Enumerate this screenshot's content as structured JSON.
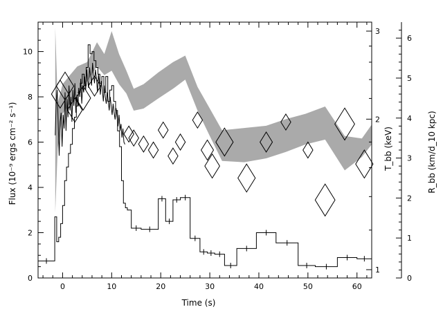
{
  "chart_data": {
    "type": "line",
    "x_axis": {
      "label": "Time (s)",
      "range": [
        -5,
        63
      ],
      "ticks": [
        0,
        10,
        20,
        30,
        40,
        50,
        60
      ],
      "tick_labels": [
        "0",
        "10",
        "20",
        "30",
        "40",
        "50",
        "60"
      ]
    },
    "left_axis": {
      "label": "Flux (10⁻⁹ ergs cm⁻² s⁻¹)",
      "range": [
        0,
        11.3
      ],
      "ticks": [
        0,
        2,
        4,
        6,
        8,
        10
      ],
      "tick_labels": [
        "0",
        "2",
        "4",
        "6",
        "8",
        "10"
      ]
    },
    "temperature_axis": {
      "label": "T_bb (keV)",
      "scale": "log",
      "ticks": [
        1,
        2,
        3
      ],
      "tick_labels": [
        "1",
        "2",
        "3"
      ]
    },
    "radius_axis": {
      "label": "R_bb (km/d_10 kpc)",
      "range": [
        0,
        6.4
      ],
      "ticks": [
        0,
        1,
        2,
        3,
        4,
        5,
        6
      ],
      "tick_labels": [
        "0",
        "1",
        "2",
        "3",
        "4",
        "5",
        "6"
      ]
    },
    "series": [
      {
        "role": "flux_lightcurve",
        "style": "histogram",
        "x": [
          -5,
          -1.6,
          -1.2,
          -0.8,
          -0.4,
          0,
          0.4,
          0.8,
          1.2,
          1.6,
          2,
          2.4,
          2.8,
          3.2,
          3.6,
          4,
          4.4,
          4.8,
          5.2,
          5.6,
          6,
          6.4,
          6.8,
          7.2,
          7.6,
          8,
          8.4,
          8.8,
          9.2,
          9.6,
          10,
          10.4,
          10.8,
          11.2,
          11.6,
          12,
          12.4,
          12.8,
          13.2,
          14,
          16,
          19.5,
          21,
          22.5,
          24,
          26,
          28,
          29.5,
          31,
          33,
          35.5,
          39.5,
          43.5,
          48,
          51.5,
          56,
          60,
          63
        ],
        "y": [
          0.75,
          2.7,
          1.6,
          1.8,
          2.4,
          3.2,
          4.3,
          4.9,
          5.5,
          5.9,
          6.6,
          7.1,
          7.6,
          8.2,
          8.6,
          9.0,
          8.5,
          9.3,
          10.3,
          9.9,
          10.0,
          9.6,
          9.3,
          9.0,
          8.6,
          8.9,
          8.2,
          8.9,
          7.8,
          8.3,
          8.5,
          7.8,
          7.4,
          6.5,
          5.8,
          4.3,
          3.3,
          3.1,
          3.0,
          2.2,
          2.15,
          3.5,
          2.5,
          3.45,
          3.55,
          1.75,
          1.15,
          1.1,
          1.05,
          0.55,
          1.3,
          2.0,
          1.55,
          0.55,
          0.5,
          0.9,
          0.85,
          0.85
        ]
      },
      {
        "role": "flux_lightcurve_secondary",
        "style": "line",
        "x": [
          -1.5,
          -1.3,
          -1.1,
          -0.9,
          -0.7,
          -0.5,
          -0.3,
          -0.1,
          0.1,
          0.3,
          0.5,
          0.7,
          0.9,
          1.1,
          1.3,
          1.5,
          1.7,
          1.9,
          2.1,
          2.3,
          2.5,
          2.7,
          2.9,
          3.1,
          3.3,
          3.5,
          3.7,
          3.9,
          4.1,
          4.3,
          4.5,
          4.7,
          4.9,
          5.1,
          5.3,
          5.5,
          5.7,
          5.9,
          6.1,
          6.3,
          6.5,
          6.7,
          6.9,
          7.1,
          7.3,
          7.5,
          7.7,
          7.9,
          8.1,
          8.3,
          8.5,
          8.7,
          8.9,
          9.1,
          9.3,
          9.5,
          9.7,
          9.9,
          10.1,
          10.3,
          10.5,
          10.7,
          10.9,
          11.1,
          11.3,
          11.5,
          11.7,
          11.9,
          12.1,
          12.3,
          12.5,
          12.7
        ],
        "y": [
          6.3,
          7.8,
          8.3,
          6.8,
          5.4,
          6.9,
          7.3,
          5.8,
          7.2,
          6.6,
          8.2,
          6.5,
          7.9,
          7.1,
          8.5,
          7.4,
          8.0,
          6.9,
          8.3,
          7.6,
          8.6,
          7.3,
          8.1,
          7.6,
          8.4,
          8.0,
          8.8,
          7.7,
          8.5,
          8.2,
          8.9,
          8.3,
          9.2,
          8.7,
          8.4,
          9.3,
          8.9,
          8.5,
          9.5,
          9.0,
          8.6,
          9.2,
          8.8,
          8.2,
          9.0,
          8.6,
          8.1,
          8.7,
          8.3,
          7.8,
          8.5,
          8.0,
          7.7,
          8.2,
          7.8,
          7.4,
          8.0,
          7.6,
          7.2,
          7.7,
          7.3,
          7.0,
          7.5,
          7.1,
          6.7,
          7.2,
          6.5,
          6.8,
          6.2,
          6.6,
          6.0,
          5.9
        ]
      },
      {
        "role": "temperature_band",
        "style": "band",
        "x": [
          -1.5,
          -1.0,
          0.0,
          1.5,
          3.0,
          5.0,
          7.0,
          8.5,
          10.0,
          11.5,
          13.0,
          14.5,
          16.5,
          19.5,
          22.5,
          25.0,
          27.5,
          30.0,
          32.5,
          37.0,
          41.5,
          45.5,
          49.5,
          53.5,
          57.5,
          61.0,
          63.0
        ],
        "y_upper": [
          3.05,
          2.15,
          2.35,
          2.45,
          2.55,
          2.6,
          2.85,
          2.7,
          3.0,
          2.7,
          2.5,
          2.3,
          2.35,
          2.48,
          2.6,
          2.68,
          2.32,
          2.1,
          1.9,
          1.92,
          1.94,
          2.0,
          2.05,
          2.12,
          1.85,
          1.83,
          1.95
        ],
        "y_lower": [
          1.3,
          1.75,
          2.05,
          2.15,
          2.25,
          2.38,
          2.55,
          2.45,
          2.5,
          2.35,
          2.25,
          2.08,
          2.1,
          2.2,
          2.3,
          2.4,
          2.08,
          1.85,
          1.65,
          1.64,
          1.67,
          1.72,
          1.78,
          1.82,
          1.58,
          1.68,
          1.78
        ]
      },
      {
        "role": "radius_points",
        "style": "diamond_markers",
        "x": [
          -0.5,
          0.5,
          2.5,
          4.2,
          6.5,
          13.5,
          14.5,
          16.5,
          18.5,
          20.5,
          22.5,
          24.0,
          27.5,
          29.5,
          30.5,
          33.0,
          37.5,
          41.5,
          45.5,
          50.0,
          53.5,
          57.5,
          61.5
        ],
        "y": [
          4.6,
          4.8,
          4.2,
          4.5,
          4.8,
          3.6,
          3.5,
          3.35,
          3.2,
          3.7,
          3.05,
          3.4,
          3.95,
          3.2,
          2.8,
          3.4,
          2.5,
          3.4,
          3.9,
          3.2,
          1.95,
          3.85,
          2.85
        ],
        "y_half_height": [
          0.35,
          0.35,
          0.3,
          0.3,
          0.25,
          0.2,
          0.2,
          0.2,
          0.2,
          0.2,
          0.2,
          0.2,
          0.2,
          0.25,
          0.3,
          0.35,
          0.35,
          0.25,
          0.2,
          0.2,
          0.4,
          0.4,
          0.35
        ]
      }
    ],
    "colors": {
      "line": "#000000",
      "band": "#aaaaaa",
      "background": "#ffffff"
    },
    "grid": false,
    "legend": "none"
  }
}
